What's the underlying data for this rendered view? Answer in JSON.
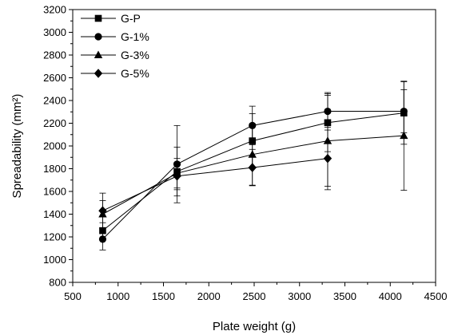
{
  "chart_data": {
    "type": "line",
    "xlabel": "Plate weight (g)",
    "ylabel": "Spreadability (mm²)",
    "xlim": [
      500,
      4500
    ],
    "ylim": [
      800,
      3200
    ],
    "xticks": [
      500,
      1000,
      1500,
      2000,
      2500,
      3000,
      3500,
      4000,
      4500
    ],
    "yticks": [
      800,
      1000,
      1200,
      1400,
      1600,
      1800,
      2000,
      2200,
      2400,
      2600,
      2800,
      3000,
      3200
    ],
    "grid": false,
    "legend_position": "top-left",
    "x": [
      830,
      1650,
      2480,
      3310,
      4150
    ],
    "series": [
      {
        "name": "G-P",
        "marker": "square",
        "values": [
          1255,
          1775,
          2045,
          2205,
          2290
        ],
        "errors": [
          70,
          215,
          240,
          255,
          275
        ]
      },
      {
        "name": "G-1%",
        "marker": "circle",
        "values": [
          1180,
          1840,
          2180,
          2305,
          2305
        ],
        "errors": [
          95,
          340,
          170,
          165,
          190
        ]
      },
      {
        "name": "G-3%",
        "marker": "triangle",
        "values": [
          1400,
          1760,
          1925,
          2045,
          2090
        ],
        "errors": [
          120,
          130,
          270,
          400,
          480
        ]
      },
      {
        "name": "G-5%",
        "marker": "diamond",
        "values": [
          1430,
          1735,
          1810,
          1890,
          null
        ],
        "errors": [
          155,
          120,
          160,
          275,
          null
        ]
      }
    ]
  }
}
